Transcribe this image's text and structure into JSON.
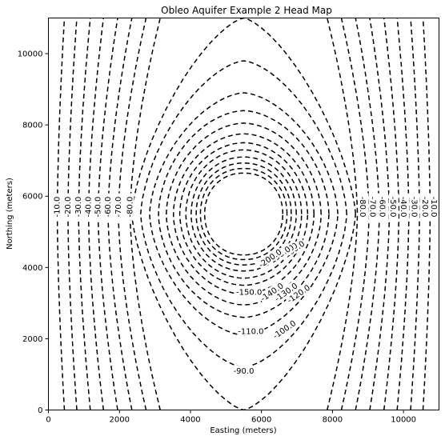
{
  "chart_data": {
    "type": "contour",
    "title": "Obleo Aquifer Example 2 Head Map",
    "xlabel": "Easting (meters)",
    "ylabel": "Northing (meters)",
    "xlim": [
      0,
      11000
    ],
    "ylim": [
      0,
      11000
    ],
    "x_ticks": [
      0,
      2000,
      4000,
      6000,
      8000,
      10000
    ],
    "y_ticks": [
      0,
      2000,
      4000,
      6000,
      8000,
      10000
    ],
    "x_tick_labels": [
      "0",
      "2000",
      "4000",
      "6000",
      "8000",
      "10000"
    ],
    "y_tick_labels": [
      "0",
      "2000",
      "4000",
      "6000",
      "8000",
      "10000"
    ],
    "line_style": "dashed",
    "line_color": "#000000",
    "center": [
      5500,
      5500
    ],
    "levels": [
      -10,
      -20,
      -30,
      -40,
      -50,
      -60,
      -70,
      -80,
      -90,
      -100,
      -110,
      -120,
      -130,
      -140,
      -150,
      -160,
      -170,
      -180,
      -190,
      -200
    ],
    "edge_contours": [
      {
        "level": -10,
        "label": "-10.0",
        "x_bottom": 450,
        "x_mid": 250
      },
      {
        "level": -20,
        "label": "-20.0",
        "x_bottom": 800,
        "x_mid": 550
      },
      {
        "level": -30,
        "label": "-30.0",
        "x_bottom": 1180,
        "x_mid": 850
      },
      {
        "level": -40,
        "label": "-40.0",
        "x_bottom": 1550,
        "x_mid": 1130
      },
      {
        "level": -50,
        "label": "-50.0",
        "x_bottom": 1950,
        "x_mid": 1400
      },
      {
        "level": -60,
        "label": "-60.0",
        "x_bottom": 2350,
        "x_mid": 1680
      },
      {
        "level": -70,
        "label": "-70.0",
        "x_bottom": 2750,
        "x_mid": 1970
      },
      {
        "level": -80,
        "label": "-80.0",
        "x_bottom": 3150,
        "x_mid": 2300
      }
    ],
    "closed_contours": [
      {
        "level": -90,
        "label": "-90.0",
        "rx": 3150,
        "ry": 5500,
        "sharp": 0.15
      },
      {
        "level": -100,
        "label": "-100.0",
        "rx": 2900,
        "ry": 4300,
        "sharp": 0.3
      },
      {
        "level": -110,
        "label": "-110.0",
        "rx": 2650,
        "ry": 3400,
        "sharp": 0.4
      },
      {
        "level": -120,
        "label": "-120.0",
        "rx": 2400,
        "ry": 2900,
        "sharp": 0.55
      },
      {
        "level": -130,
        "label": "-130.0",
        "rx": 2180,
        "ry": 2550,
        "sharp": 0.6
      },
      {
        "level": -140,
        "label": "-140.0",
        "rx": 1980,
        "ry": 2250,
        "sharp": 0.65
      },
      {
        "level": -150,
        "label": "-150.0",
        "rx": 1800,
        "ry": 2000,
        "sharp": 0.7
      },
      {
        "level": -160,
        "label": "-160.0",
        "rx": 1630,
        "ry": 1800,
        "sharp": 0.75
      },
      {
        "level": -170,
        "label": "-170.0",
        "rx": 1480,
        "ry": 1600,
        "sharp": 0.8
      },
      {
        "level": -180,
        "label": "-180.0",
        "rx": 1340,
        "ry": 1430,
        "sharp": 0.85
      },
      {
        "level": -190,
        "label": "-190.0",
        "rx": 1220,
        "ry": 1280,
        "sharp": 0.88
      },
      {
        "level": -200,
        "label": "-200.0",
        "rx": 1100,
        "ry": 1150,
        "sharp": 0.9
      }
    ],
    "visible_labels": [
      {
        "text": "-10.0",
        "x": 250,
        "y": 5700
      },
      {
        "text": "-20.0",
        "x": 550,
        "y": 5700
      },
      {
        "text": "-30.0",
        "x": 850,
        "y": 5700
      },
      {
        "text": "-40.0",
        "x": 1130,
        "y": 5700
      },
      {
        "text": "-50.0",
        "x": 1400,
        "y": 5700
      },
      {
        "text": "-60.0",
        "x": 1680,
        "y": 5700
      },
      {
        "text": "-70.0",
        "x": 1970,
        "y": 5700
      },
      {
        "text": "-80.0",
        "x": 2300,
        "y": 5700
      },
      {
        "text": "-80.0",
        "x": 8850,
        "y": 5700
      },
      {
        "text": "-70.0",
        "x": 9130,
        "y": 5700
      },
      {
        "text": "-60.0",
        "x": 9400,
        "y": 5700
      },
      {
        "text": "-50.0",
        "x": 9700,
        "y": 5700
      },
      {
        "text": "-40.0",
        "x": 10000,
        "y": 5700
      },
      {
        "text": "-30.0",
        "x": 10300,
        "y": 5700
      },
      {
        "text": "-20.0",
        "x": 10600,
        "y": 5700
      },
      {
        "text": "-10.0",
        "x": 10850,
        "y": 5700
      },
      {
        "text": "-90.0",
        "x": 5500,
        "y": 1090
      },
      {
        "text": "-100.0",
        "x": 6650,
        "y": 2250
      },
      {
        "text": "-110.0",
        "x": 5700,
        "y": 2200
      },
      {
        "text": "-120.0",
        "x": 7050,
        "y": 3250
      },
      {
        "text": "-130.0",
        "x": 6700,
        "y": 3300
      },
      {
        "text": "-140.0",
        "x": 6300,
        "y": 3300
      },
      {
        "text": "-150.0",
        "x": 5650,
        "y": 3300
      },
      {
        "text": "-160.0",
        "x": 6900,
        "y": 4480
      },
      {
        "text": "-170.0",
        "x": 6700,
        "y": 4430
      },
      {
        "text": "-180.0",
        "x": 6600,
        "y": 4370
      },
      {
        "text": "-190.0",
        "x": 6500,
        "y": 4330
      },
      {
        "text": "-200.0",
        "x": 6250,
        "y": 4250
      }
    ]
  }
}
